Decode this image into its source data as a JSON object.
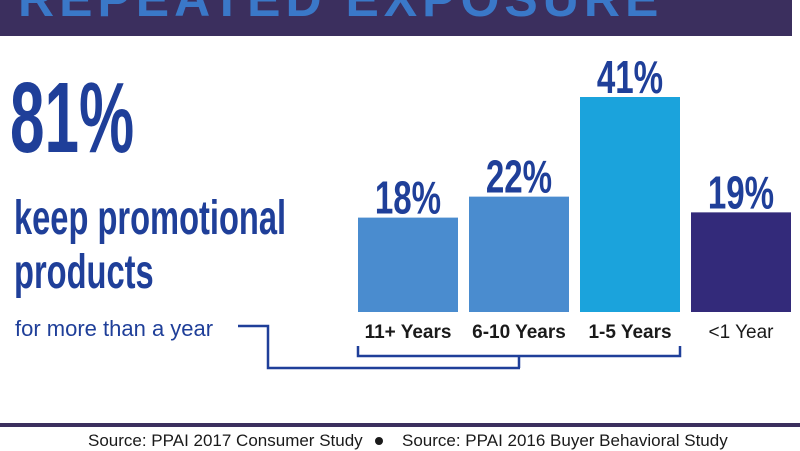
{
  "banner": {
    "title": "REPEATED EXPOSURE"
  },
  "headline": {
    "stat": "81%",
    "line1": "keep promotional",
    "line2": "products",
    "line3": "for more than a year"
  },
  "chart_data": {
    "type": "bar",
    "categories": [
      "11+ Years",
      "6-10 Years",
      "1-5 Years",
      "<1 Year"
    ],
    "values": [
      18,
      22,
      41,
      19
    ],
    "value_labels": [
      "18%",
      "22%",
      "41%",
      "19%"
    ],
    "bar_colors": [
      "#4a8ccf",
      "#4a8ccf",
      "#1ba3dc",
      "#332a7a"
    ],
    "label_colors": [
      "#1f3f99",
      "#1f3f99",
      "#1f3f99",
      "#1f3f99"
    ],
    "ylim": [
      0,
      41
    ],
    "bracket": "groups 11+ Years, 6-10 Years and 1-5 Years",
    "title": "",
    "xlabel": "",
    "ylabel": ""
  },
  "sources": [
    "Source: PPAI 2017 Consumer Study",
    "Source: PPAI 2016 Buyer Behavioral Study"
  ],
  "colors": {
    "banner": "#3b2f5e",
    "text_primary": "#1f3f99",
    "bracket": "#1f3f99"
  }
}
